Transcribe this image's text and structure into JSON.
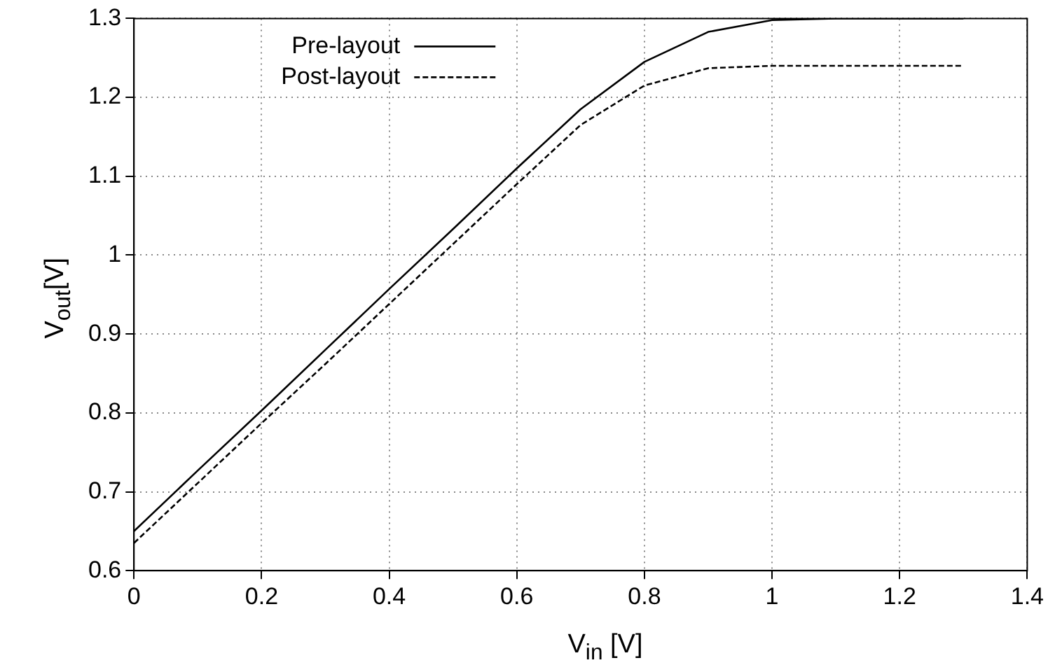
{
  "chart_data": {
    "type": "line",
    "xlabel": "V$_{in}$ [V]",
    "ylabel": "V$_{out}$[V]",
    "x": [
      0,
      0.1,
      0.2,
      0.3,
      0.4,
      0.5,
      0.6,
      0.7,
      0.8,
      0.9,
      1.0,
      1.1,
      1.2,
      1.3
    ],
    "series": [
      {
        "name": "Pre-layout",
        "color": "#000000",
        "line_style": "solid",
        "values": [
          0.65,
          0.727,
          0.803,
          0.88,
          0.957,
          1.033,
          1.11,
          1.185,
          1.245,
          1.283,
          1.298,
          1.3,
          1.3,
          1.3
        ]
      },
      {
        "name": "Post-layout",
        "color": "#000000",
        "line_style": "dashed",
        "values": [
          0.635,
          0.711,
          0.787,
          0.862,
          0.938,
          1.014,
          1.09,
          1.165,
          1.215,
          1.237,
          1.24,
          1.24,
          1.24,
          1.24
        ]
      }
    ],
    "xlim": [
      0,
      1.4
    ],
    "xticks": [
      0,
      0.2,
      0.4,
      0.6,
      0.8,
      1,
      1.2,
      1.4
    ],
    "ylim": [
      0.6,
      1.3
    ],
    "yticks": [
      0.6,
      0.7,
      0.8,
      0.9,
      1,
      1.1,
      1.2,
      1.3
    ],
    "grid": true,
    "legend": "top left",
    "marker": "none"
  }
}
